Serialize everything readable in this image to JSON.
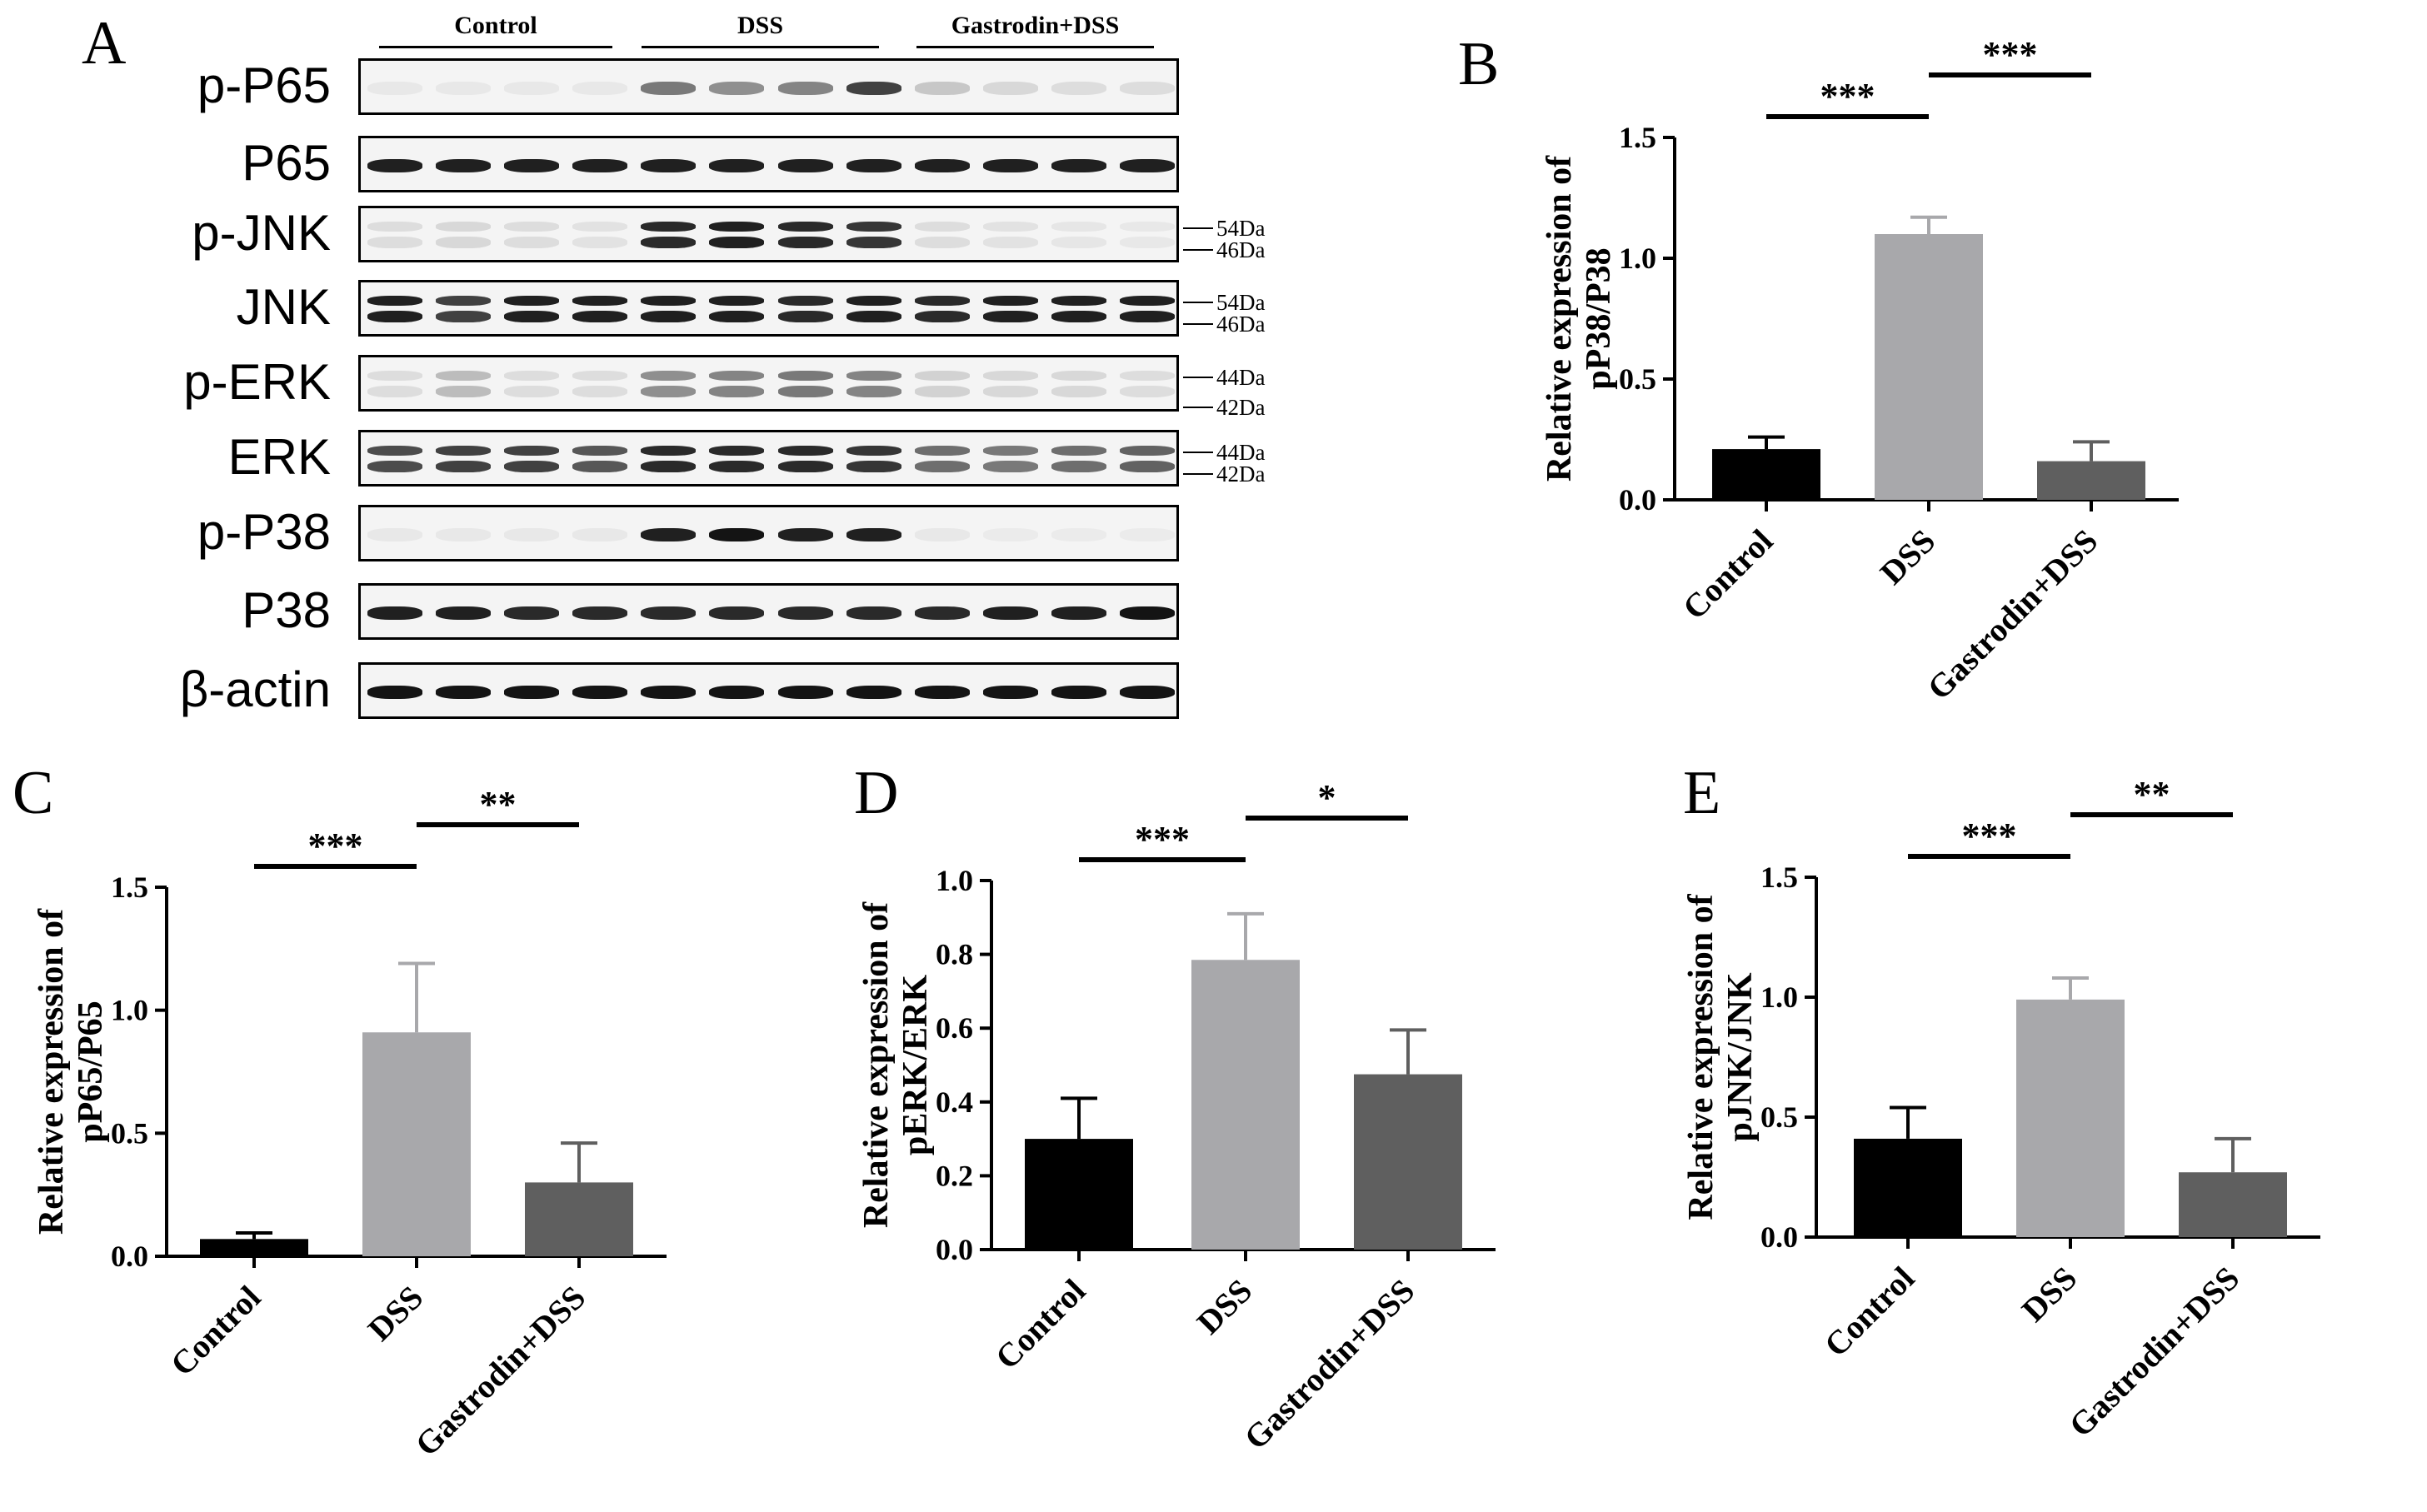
{
  "figure": {
    "panel_letters": [
      "A",
      "B",
      "C",
      "D",
      "E"
    ],
    "western_blot": {
      "groups": [
        "Control",
        "DSS",
        "Gastrodin+DSS"
      ],
      "rows": [
        {
          "protein": "p-P65",
          "markers": []
        },
        {
          "protein": "P65",
          "markers": []
        },
        {
          "protein": "p-JNK",
          "markers": [
            "54Da",
            "46Da"
          ]
        },
        {
          "protein": "JNK",
          "markers": [
            "54Da",
            "46Da"
          ]
        },
        {
          "protein": "p-ERK",
          "markers": [
            "44Da",
            "42Da"
          ]
        },
        {
          "protein": "ERK",
          "markers": [
            "44Da",
            "42Da"
          ]
        },
        {
          "protein": "p-P38",
          "markers": []
        },
        {
          "protein": "P38",
          "markers": []
        },
        {
          "protein": "β-actin",
          "markers": []
        }
      ]
    }
  },
  "chart_data": [
    {
      "panel": "B",
      "type": "bar",
      "categories": [
        "Control",
        "DSS",
        "Gastrodin+DSS"
      ],
      "values": [
        0.21,
        1.1,
        0.16
      ],
      "errors": [
        0.05,
        0.07,
        0.08
      ],
      "ylabel_line1": "Relative expression of",
      "ylabel_line2": "pP38/P38",
      "ylim": [
        0,
        1.5
      ],
      "yticks": [
        "0.0",
        "0.5",
        "1.0",
        "1.5"
      ],
      "significance": [
        {
          "from": 0,
          "to": 1,
          "label": "***"
        },
        {
          "from": 1,
          "to": 2,
          "label": "***"
        }
      ],
      "colors": [
        "#000000",
        "#a8a8ab",
        "#5f5f5f"
      ]
    },
    {
      "panel": "C",
      "type": "bar",
      "categories": [
        "Control",
        "DSS",
        "Gastrodin+DSS"
      ],
      "values": [
        0.07,
        0.91,
        0.3
      ],
      "errors": [
        0.025,
        0.28,
        0.16
      ],
      "ylabel_line1": "Relative expression of",
      "ylabel_line2": "pP65/P65",
      "ylim": [
        0,
        1.5
      ],
      "yticks": [
        "0.0",
        "0.5",
        "1.0",
        "1.5"
      ],
      "significance": [
        {
          "from": 0,
          "to": 1,
          "label": "***"
        },
        {
          "from": 1,
          "to": 2,
          "label": "**"
        }
      ],
      "colors": [
        "#000000",
        "#a8a8ab",
        "#5f5f5f"
      ]
    },
    {
      "panel": "D",
      "type": "bar",
      "categories": [
        "Control",
        "DSS",
        "Gastrodin+DSS"
      ],
      "values": [
        0.3,
        0.785,
        0.475
      ],
      "errors": [
        0.11,
        0.125,
        0.12
      ],
      "ylabel_line1": "Relative expression of",
      "ylabel_line2": "pERK/ERK",
      "ylim": [
        0,
        1.0
      ],
      "yticks": [
        "0.0",
        "0.2",
        "0.4",
        "0.6",
        "0.8",
        "1.0"
      ],
      "significance": [
        {
          "from": 0,
          "to": 1,
          "label": "***"
        },
        {
          "from": 1,
          "to": 2,
          "label": "*"
        }
      ],
      "colors": [
        "#000000",
        "#a8a8ab",
        "#5f5f5f"
      ]
    },
    {
      "panel": "E",
      "type": "bar",
      "categories": [
        "Control",
        "DSS",
        "Gastrodin+DSS"
      ],
      "values": [
        0.41,
        0.99,
        0.27
      ],
      "errors": [
        0.13,
        0.09,
        0.14
      ],
      "ylabel_line1": "Relative expression of",
      "ylabel_line2": "pJNK/JNK",
      "ylim": [
        0,
        1.5
      ],
      "yticks": [
        "0.0",
        "0.5",
        "1.0",
        "1.5"
      ],
      "significance": [
        {
          "from": 0,
          "to": 1,
          "label": "***"
        },
        {
          "from": 1,
          "to": 2,
          "label": "**"
        }
      ],
      "colors": [
        "#000000",
        "#a8a8ab",
        "#5f5f5f"
      ]
    }
  ]
}
